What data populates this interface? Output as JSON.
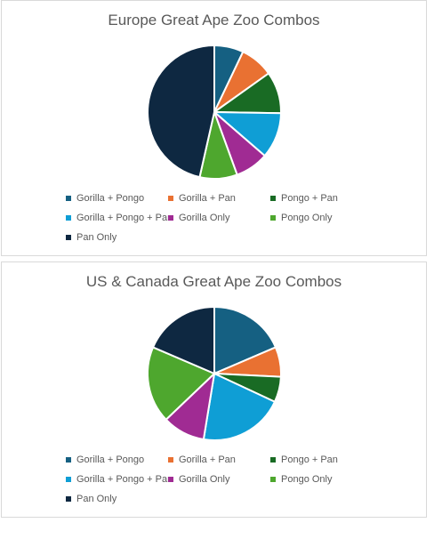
{
  "chart_data": [
    {
      "type": "pie",
      "title": "Europe Great Ape Zoo Combos",
      "categories": [
        "Gorilla + Pongo",
        "Gorilla + Pan",
        "Pongo + Pan",
        "Gorilla + Pongo + Pan",
        "Gorilla Only",
        "Pongo Only",
        "Pan Only"
      ],
      "values": [
        7,
        8,
        10,
        11,
        8,
        9,
        46
      ],
      "colors": [
        "#156082",
        "#e97132",
        "#196b24",
        "#0f9ed5",
        "#a02b93",
        "#4ea72e",
        "#0e2841"
      ],
      "legend": "bottom"
    },
    {
      "type": "pie",
      "title": "US & Canada Great Ape Zoo Combos",
      "categories": [
        "Gorilla + Pongo",
        "Gorilla + Pan",
        "Pongo + Pan",
        "Gorilla + Pongo + Pan",
        "Gorilla Only",
        "Pongo Only",
        "Pan Only"
      ],
      "values": [
        18,
        7,
        6,
        20,
        10,
        18,
        18
      ],
      "colors": [
        "#156082",
        "#e97132",
        "#196b24",
        "#0f9ed5",
        "#a02b93",
        "#4ea72e",
        "#0e2841"
      ],
      "legend": "bottom"
    }
  ]
}
